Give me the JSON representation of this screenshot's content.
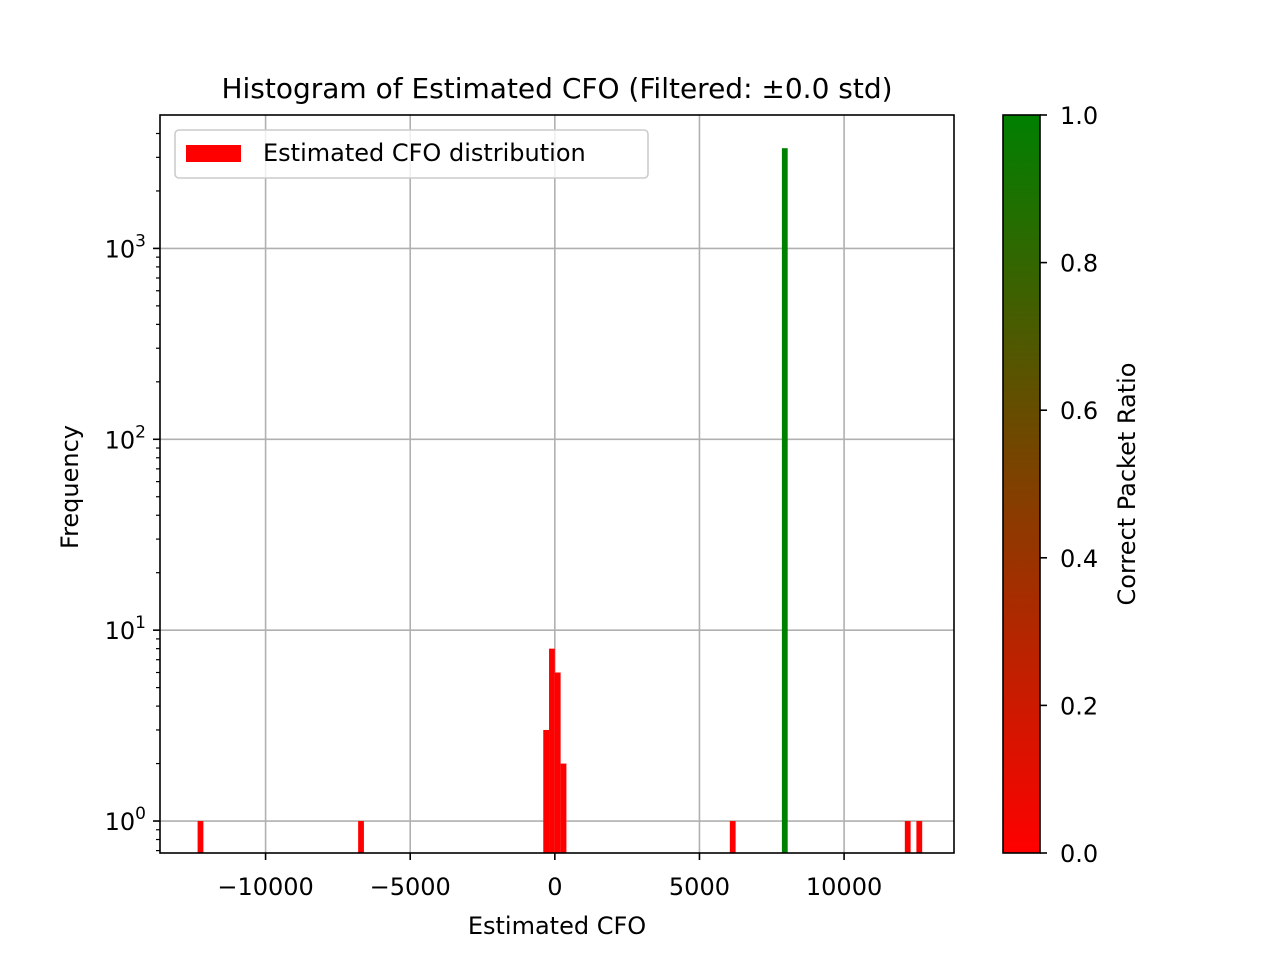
{
  "chart_data": {
    "type": "bar",
    "title": "Histogram of Estimated CFO (Filtered: ±0.0 std)",
    "xlabel": "Estimated CFO",
    "ylabel": "Frequency",
    "xlim": [
      -13650,
      13800
    ],
    "ylim": [
      0.68,
      5000
    ],
    "yscale": "log",
    "grid": true,
    "x_ticks": [
      {
        "value": -10000,
        "label": "−10000"
      },
      {
        "value": -5000,
        "label": "−5000"
      },
      {
        "value": 0,
        "label": "0"
      },
      {
        "value": 5000,
        "label": "5000"
      },
      {
        "value": 10000,
        "label": "10000"
      }
    ],
    "y_ticks": [
      {
        "value": 1,
        "base": "10",
        "exp": "0"
      },
      {
        "value": 10,
        "base": "10",
        "exp": "1"
      },
      {
        "value": 100,
        "base": "10",
        "exp": "2"
      },
      {
        "value": 1000,
        "base": "10",
        "exp": "3"
      }
    ],
    "legend": {
      "label": "Estimated CFO distribution",
      "color": "#ff0000",
      "position": "upper left"
    },
    "bars": [
      {
        "x": -12350,
        "count": 1,
        "ratio": 0.0
      },
      {
        "x": -6800,
        "count": 1,
        "ratio": 0.0
      },
      {
        "x": -400,
        "count": 3,
        "ratio": 0.0
      },
      {
        "x": -200,
        "count": 8,
        "ratio": 0.0
      },
      {
        "x": 0,
        "count": 6,
        "ratio": 0.0
      },
      {
        "x": 200,
        "count": 2,
        "ratio": 0.0
      },
      {
        "x": 6050,
        "count": 1,
        "ratio": 0.0
      },
      {
        "x": 7850,
        "count": 3350,
        "ratio": 1.0
      },
      {
        "x": 12100,
        "count": 1,
        "ratio": 0.0
      },
      {
        "x": 12500,
        "count": 1,
        "ratio": 0.0
      }
    ],
    "bin_width": 200,
    "colorbar": {
      "label": "Correct Packet Ratio",
      "min": 0.0,
      "max": 1.0,
      "color_low": "#ff0000",
      "color_high": "#008000",
      "ticks": [
        "0.0",
        "0.2",
        "0.4",
        "0.6",
        "0.8",
        "1.0"
      ]
    }
  }
}
